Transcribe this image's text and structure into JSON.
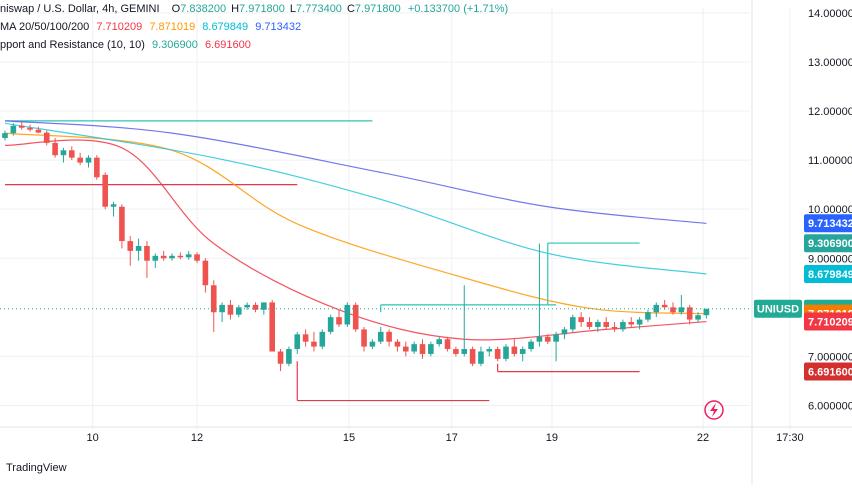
{
  "header": {
    "title": "niswap / U.S. Dollar, 4h, GEMINI",
    "ohlc": [
      {
        "k": "O",
        "v": "7.838200"
      },
      {
        "k": "H",
        "v": "7.971800"
      },
      {
        "k": "L",
        "v": "7.773400"
      },
      {
        "k": "C",
        "v": "7.971800"
      }
    ],
    "change": "+0.133700 (+1.71%)",
    "ma_label": "MA 20/50/100/200",
    "ma_values": [
      "7.710209",
      "7.871019",
      "8.679849",
      "9.713432"
    ],
    "sr_label": "pport and Resistance (10, 10)",
    "sr_values": [
      "9.306900",
      "6.691600"
    ]
  },
  "colors": {
    "up": "#26a69a",
    "down": "#ef5350",
    "ma20": "#f23645",
    "ma50": "#ff9800",
    "ma100": "#26c6da",
    "ma200": "#5b5fe8",
    "sr_high": "#2ec4b6",
    "sr_low": "#e5394a",
    "last": "#22ab94",
    "grid": "#eef0f3",
    "axis_text": "#131722"
  },
  "chart_data": {
    "type": "candlestick",
    "symbol_badge": "UNIUSD",
    "ylim": [
      5.5,
      14.1
    ],
    "y_ticks": [
      "14.000000",
      "13.000000",
      "12.000000",
      "11.000000",
      "10.000000",
      "9.000000",
      "7.000000",
      "6.000000"
    ],
    "x_ticks": [
      "10",
      "12",
      "15",
      "17",
      "19",
      "22",
      "17:30"
    ],
    "candles": [
      [
        11.45,
        11.6,
        11.4,
        11.55
      ],
      [
        11.55,
        11.75,
        11.5,
        11.7
      ],
      [
        11.7,
        11.78,
        11.62,
        11.66
      ],
      [
        11.66,
        11.72,
        11.58,
        11.62
      ],
      [
        11.62,
        11.68,
        11.55,
        11.56
      ],
      [
        11.56,
        11.6,
        11.3,
        11.35
      ],
      [
        11.35,
        11.45,
        11.05,
        11.1
      ],
      [
        11.1,
        11.25,
        10.95,
        11.2
      ],
      [
        11.2,
        11.28,
        11.0,
        11.05
      ],
      [
        11.05,
        11.15,
        10.9,
        10.95
      ],
      [
        10.95,
        11.1,
        10.85,
        11.05
      ],
      [
        11.05,
        11.1,
        10.6,
        10.65
      ],
      [
        10.7,
        10.75,
        10.0,
        10.05
      ],
      [
        10.05,
        10.15,
        9.85,
        10.1
      ],
      [
        10.05,
        10.1,
        9.2,
        9.35
      ],
      [
        9.35,
        9.45,
        8.85,
        9.15
      ],
      [
        9.15,
        9.4,
        8.95,
        9.25
      ],
      [
        9.25,
        9.35,
        8.6,
        8.95
      ],
      [
        8.95,
        9.1,
        8.8,
        9.05
      ],
      [
        9.05,
        9.15,
        8.95,
        9.0
      ],
      [
        9.0,
        9.1,
        8.95,
        9.05
      ],
      [
        9.05,
        9.12,
        8.98,
        9.02
      ],
      [
        9.02,
        9.15,
        8.97,
        9.08
      ],
      [
        9.08,
        9.12,
        8.9,
        8.95
      ],
      [
        8.95,
        9.0,
        8.3,
        8.45
      ],
      [
        8.45,
        8.55,
        7.5,
        7.9
      ],
      [
        7.9,
        8.1,
        7.7,
        8.05
      ],
      [
        8.05,
        8.15,
        7.75,
        7.85
      ],
      [
        7.85,
        8.05,
        7.8,
        8.0
      ],
      [
        8.0,
        8.1,
        7.95,
        8.05
      ],
      [
        8.05,
        8.1,
        7.9,
        7.95
      ],
      [
        7.95,
        8.1,
        7.85,
        8.1
      ],
      [
        8.1,
        8.15,
        7.1,
        7.1
      ],
      [
        7.1,
        7.15,
        6.7,
        6.85
      ],
      [
        6.85,
        7.2,
        6.8,
        7.15
      ],
      [
        7.15,
        7.5,
        7.05,
        7.45
      ],
      [
        7.45,
        7.55,
        7.2,
        7.3
      ],
      [
        7.3,
        7.5,
        7.1,
        7.2
      ],
      [
        7.2,
        7.55,
        7.15,
        7.5
      ],
      [
        7.5,
        7.85,
        7.45,
        7.8
      ],
      [
        7.8,
        7.95,
        7.6,
        7.65
      ],
      [
        7.65,
        8.1,
        7.6,
        8.05
      ],
      [
        8.05,
        8.1,
        7.5,
        7.55
      ],
      [
        7.55,
        7.6,
        7.1,
        7.2
      ],
      [
        7.2,
        7.35,
        7.15,
        7.3
      ],
      [
        7.3,
        7.6,
        7.25,
        7.5
      ],
      [
        7.5,
        7.55,
        7.2,
        7.3
      ],
      [
        7.3,
        7.35,
        7.1,
        7.2
      ],
      [
        7.2,
        7.3,
        7.0,
        7.1
      ],
      [
        7.1,
        7.3,
        7.05,
        7.25
      ],
      [
        7.25,
        7.35,
        6.95,
        7.05
      ],
      [
        7.05,
        7.3,
        7.0,
        7.25
      ],
      [
        7.25,
        7.4,
        7.2,
        7.35
      ],
      [
        7.35,
        7.4,
        7.1,
        7.15
      ],
      [
        7.15,
        7.2,
        7.0,
        7.05
      ],
      [
        7.05,
        8.45,
        7.0,
        7.15
      ],
      [
        7.15,
        7.2,
        6.8,
        6.85
      ],
      [
        6.85,
        7.2,
        6.8,
        7.1
      ],
      [
        7.1,
        7.2,
        7.0,
        7.15
      ],
      [
        7.15,
        7.2,
        6.9,
        6.95
      ],
      [
        6.95,
        7.25,
        6.9,
        7.2
      ],
      [
        7.2,
        7.35,
        7.0,
        7.05
      ],
      [
        7.05,
        7.2,
        6.9,
        7.15
      ],
      [
        7.15,
        7.35,
        7.1,
        7.3
      ],
      [
        7.3,
        9.3,
        7.2,
        7.4
      ],
      [
        7.4,
        7.45,
        7.25,
        7.3
      ],
      [
        7.3,
        7.5,
        6.9,
        7.45
      ],
      [
        7.45,
        7.6,
        7.35,
        7.55
      ],
      [
        7.55,
        7.85,
        7.5,
        7.8
      ],
      [
        7.8,
        7.9,
        7.6,
        7.7
      ],
      [
        7.7,
        7.8,
        7.55,
        7.6
      ],
      [
        7.6,
        7.75,
        7.5,
        7.7
      ],
      [
        7.7,
        7.8,
        7.55,
        7.6
      ],
      [
        7.6,
        7.7,
        7.5,
        7.55
      ],
      [
        7.55,
        7.75,
        7.5,
        7.7
      ],
      [
        7.7,
        7.8,
        7.6,
        7.65
      ],
      [
        7.65,
        7.8,
        7.55,
        7.75
      ],
      [
        7.75,
        7.95,
        7.7,
        7.9
      ],
      [
        7.9,
        8.1,
        7.8,
        8.05
      ],
      [
        8.05,
        8.15,
        7.95,
        8.0
      ],
      [
        8.0,
        8.1,
        7.85,
        7.9
      ],
      [
        7.9,
        8.25,
        7.85,
        8.0
      ],
      [
        8.0,
        8.05,
        7.65,
        7.75
      ],
      [
        7.75,
        7.9,
        7.7,
        7.84
      ],
      [
        7.84,
        7.97,
        7.77,
        7.97
      ]
    ],
    "moving_averages": [
      {
        "label": "MA 20",
        "color": "#f23645",
        "points": [
          [
            0,
            11.3
          ],
          [
            14,
            11.25
          ],
          [
            25,
            9.3
          ],
          [
            40,
            7.95
          ],
          [
            55,
            7.35
          ],
          [
            72,
            7.55
          ],
          [
            84,
            7.71
          ]
        ]
      },
      {
        "label": "MA 50",
        "color": "#ff9800",
        "points": [
          [
            0,
            11.55
          ],
          [
            20,
            11.2
          ],
          [
            35,
            9.7
          ],
          [
            55,
            8.6
          ],
          [
            70,
            7.98
          ],
          [
            84,
            7.87
          ]
        ]
      },
      {
        "label": "MA 100",
        "color": "#26c6da",
        "points": [
          [
            0,
            11.75
          ],
          [
            25,
            11.05
          ],
          [
            45,
            10.2
          ],
          [
            65,
            9.1
          ],
          [
            84,
            8.68
          ]
        ]
      },
      {
        "label": "MA 200",
        "color": "#5b5fe8",
        "points": [
          [
            0,
            11.8
          ],
          [
            20,
            11.55
          ],
          [
            45,
            10.75
          ],
          [
            65,
            10.05
          ],
          [
            84,
            9.71
          ]
        ]
      }
    ],
    "support_resistance": [
      {
        "x0": 0,
        "x1": 44,
        "y": 11.8,
        "color": "#2ec4b6"
      },
      {
        "x0": 0,
        "x1": 35,
        "y": 10.5,
        "color": "#e5394a"
      },
      {
        "x0": 45,
        "x1": 66,
        "y": 8.05,
        "color": "#2ec4b6"
      },
      {
        "x0": 65,
        "x1": 76,
        "y": 9.31,
        "color": "#2ec4b6"
      },
      {
        "x0": 35,
        "x1": 58,
        "y": 6.1,
        "color": "#e5394a"
      },
      {
        "x0": 59,
        "x1": 76,
        "y": 6.69,
        "color": "#e5394a"
      }
    ],
    "price_labels": [
      {
        "text": "9.713432",
        "y": 9.713432,
        "color": "#2962ff",
        "badge": ""
      },
      {
        "text": "9.306900",
        "y": 9.3069,
        "color": "#26a69a",
        "badge": ""
      },
      {
        "text": "8.679849",
        "y": 8.679849,
        "color": "#00bcd4",
        "badge": ""
      },
      {
        "text": "7.971800",
        "y": 7.9718,
        "color": "#22ab94",
        "badge": "UNIUSD"
      },
      {
        "text": "7.871019",
        "y": 7.871019,
        "color": "#f57c00",
        "badge": ""
      },
      {
        "text": "7.710209",
        "y": 7.710209,
        "color": "#f23645",
        "badge": ""
      },
      {
        "text": "6.691600",
        "y": 6.6916,
        "color": "#d32f2f",
        "badge": ""
      }
    ]
  },
  "footer": {
    "brand": "TradingView"
  }
}
